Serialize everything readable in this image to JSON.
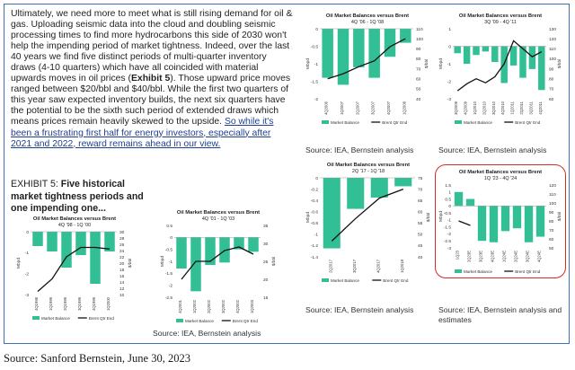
{
  "text": {
    "paragraph": "Ultimately, we need more to meet what is still rising demand for oil & gas. Uploading seismic data into the cloud and doubling seismic processing times to find more hydrocarbons this side of 2030 won't help the impending period of market tightness. Indeed, over the last 40 years we find five distinct periods of multi-quarter inventory draws (4-10 quarters) which have all coincided with material upwards moves in oil prices (",
    "exhibit_ref": "Exhibit 5",
    "paragraph_cont": "). Those upward price moves ranged between $20/bbl and $40/bbl. While the first two quarters of this year saw expected inventory builds, the next six quarters have the potential to be the sixth such period of extended draws which means prices remain heavily skewed to the upside. ",
    "paragraph_link": "So while it's been a frustrating first half for energy investors, especially after 2021 and 2022, reward remains ahead in our view.",
    "exhibit_prefix": "EXHIBIT 5: ",
    "exhibit_title": "Five historical market tightness periods and one impending one...",
    "source_a": "Source: IEA, Bernstein analysis",
    "source_b": "Source: IEA, Bernstein analysis",
    "source_c": "Source: IEA, Bernstein analysis",
    "source_d": "Source: IEA, Bernstein analysis and estimates",
    "footer": "Source: Sanford Bernstein, June 30, 2023"
  },
  "colors": {
    "bar": "#33bf95",
    "line": "#111111",
    "frame": "#3f6fb5",
    "highlight": "#d42a2a"
  },
  "chart_data": [
    {
      "id": "c1",
      "type": "bar+line",
      "title": "Oil Market Balances versus Brent",
      "subtitle": "4Q '98 - 1Q '00",
      "ylabel": "Mbpd",
      "y2label": "$/bbl",
      "ylim": [
        -3.5,
        0
      ],
      "yticks": [
        "0",
        "-1",
        "-2",
        "-3"
      ],
      "y2lim": [
        10,
        30
      ],
      "y2ticks": [
        "30",
        "28",
        "26",
        "24",
        "22",
        "20",
        "18",
        "16",
        "14",
        "12",
        "10"
      ],
      "categories": [
        "4Q1998",
        "1Q1999",
        "2Q1999",
        "3Q1999",
        "4Q1999",
        "1Q2000"
      ],
      "series": [
        {
          "name": "Market Balance",
          "kind": "bar",
          "values": [
            -0.8,
            -1.1,
            -2.0,
            -1.3,
            -2.9,
            -1.1
          ]
        },
        {
          "name": "Brent Qtr End",
          "kind": "line",
          "axis": "y2",
          "values": [
            11,
            15,
            22,
            25,
            25,
            24.5
          ]
        }
      ]
    },
    {
      "id": "c2",
      "type": "bar+line",
      "title": "Oil Market Balances versus Brent",
      "subtitle": "4Q '01 - 1Q '03",
      "ylabel": "Mbpd",
      "y2label": "$/bbl",
      "ylim": [
        -2.5,
        0.5
      ],
      "yticks": [
        "0.5",
        "0",
        "-0.5",
        "-1",
        "-1.5",
        "-2",
        "-2.5"
      ],
      "y2lim": [
        15,
        35
      ],
      "y2ticks": [
        "35",
        "30",
        "25",
        "20",
        "15"
      ],
      "categories": [
        "4Q2001",
        "1Q2002",
        "2Q2002",
        "3Q2002",
        "4Q2002",
        "1Q2003"
      ],
      "series": [
        {
          "name": "Market Balance",
          "kind": "bar",
          "values": [
            -1.3,
            -2.25,
            -1.15,
            -1.05,
            -0.5,
            -0.6
          ]
        },
        {
          "name": "Brent Qtr End",
          "kind": "line",
          "axis": "y2",
          "values": [
            20,
            25,
            25,
            28,
            29,
            27
          ]
        }
      ]
    },
    {
      "id": "c3",
      "type": "bar+line",
      "title": "Oil Market Balances versus Brent",
      "subtitle": "4Q '06 - 1Q '08",
      "ylabel": "Mbpd",
      "y2label": "$/bbl",
      "ylim": [
        -2,
        0
      ],
      "yticks": [
        "0",
        "-0.5",
        "-1",
        "-1.5",
        "-2"
      ],
      "y2lim": [
        40,
        110
      ],
      "y2ticks": [
        "110",
        "100",
        "90",
        "80",
        "70",
        "60",
        "50",
        "40"
      ],
      "categories": [
        "4Q2006",
        "1Q2007",
        "2Q2007",
        "3Q2007",
        "4Q2007",
        "1Q2008"
      ],
      "series": [
        {
          "name": "Market Balance",
          "kind": "bar",
          "values": [
            -1.4,
            -1.6,
            -1.1,
            -1.4,
            -0.8,
            -0.4
          ]
        },
        {
          "name": "Brent Qtr End",
          "kind": "line",
          "axis": "y2",
          "values": [
            60,
            65,
            72,
            78,
            92,
            100
          ]
        }
      ]
    },
    {
      "id": "c4",
      "type": "bar+line",
      "title": "Oil Market Balances versus Brent",
      "subtitle": "3Q '09 - 4Q '11",
      "ylabel": "Mbpd",
      "y2label": "$/bbl",
      "ylim": [
        -3,
        1
      ],
      "yticks": [
        "1",
        "0",
        "-1",
        "-2",
        "-3"
      ],
      "y2lim": [
        60,
        130
      ],
      "y2ticks": [
        "130",
        "120",
        "110",
        "100",
        "90",
        "80",
        "70",
        "60"
      ],
      "categories": [
        "3Q2009",
        "4Q2009",
        "1Q2010",
        "2Q2010",
        "3Q2010",
        "4Q2010",
        "1Q2011",
        "2Q2011",
        "3Q2011",
        "4Q2011"
      ],
      "series": [
        {
          "name": "Market Balance",
          "kind": "bar",
          "values": [
            -0.4,
            -1.0,
            -0.5,
            -0.3,
            -0.9,
            -2.1,
            -1.1,
            -1.8,
            -1.3,
            -2.5
          ]
        },
        {
          "name": "Brent Qtr End",
          "kind": "line",
          "axis": "y2",
          "values": [
            68,
            75,
            80,
            76,
            82,
            95,
            118,
            110,
            102,
            107
          ]
        }
      ]
    },
    {
      "id": "c5",
      "type": "bar+line",
      "title": "Oil Market Balances versus Brent",
      "subtitle": "2Q '17 - 1Q '18",
      "ylabel": "Mbpd",
      "y2label": "$/bbl",
      "ylim": [
        -1.4,
        0
      ],
      "yticks": [
        "0",
        "-0.2",
        "-0.4",
        "-0.6",
        "-0.8",
        "-1",
        "-1.2",
        "-1.4"
      ],
      "y2lim": [
        40,
        75
      ],
      "y2ticks": [
        "75",
        "70",
        "65",
        "60",
        "55",
        "50",
        "45",
        "40"
      ],
      "categories": [
        "2Q2017",
        "3Q2017",
        "4Q2017",
        "1Q2018"
      ],
      "series": [
        {
          "name": "Market Balance",
          "kind": "bar",
          "values": [
            -1.25,
            -0.55,
            -0.35,
            -0.15
          ]
        },
        {
          "name": "Brent Qtr End",
          "kind": "line",
          "axis": "y2",
          "values": [
            47,
            57,
            66,
            70
          ]
        }
      ]
    },
    {
      "id": "c6",
      "type": "bar+line",
      "title": "Oil Market Balances versus Brent",
      "subtitle": "1Q '23 - 4Q '24",
      "ylabel": "Mbpd",
      "y2label": "$/bbl",
      "ylim": [
        -3,
        1.5
      ],
      "yticks": [
        "1.5",
        "1",
        "0.5",
        "0",
        "-0.5",
        "-1",
        "-1.5",
        "-2",
        "-2.5",
        "-3"
      ],
      "y2lim": [
        50,
        120
      ],
      "y2ticks": [
        "120",
        "110",
        "100",
        "90",
        "80",
        "70",
        "60",
        "50"
      ],
      "categories": [
        "1Q23",
        "2Q23E",
        "3Q23E",
        "4Q23E",
        "1Q24E",
        "2Q24E",
        "3Q24E",
        "4Q24E"
      ],
      "series": [
        {
          "name": "Market Balance",
          "kind": "bar",
          "values": [
            1.0,
            0.5,
            -2.5,
            -2.6,
            -1.8,
            -1.6,
            -2.6,
            -2.2
          ]
        },
        {
          "name": "Brent Qtr End",
          "kind": "line",
          "axis": "y2",
          "values": [
            80,
            75,
            null,
            null,
            null,
            null,
            null,
            null
          ]
        }
      ]
    }
  ]
}
